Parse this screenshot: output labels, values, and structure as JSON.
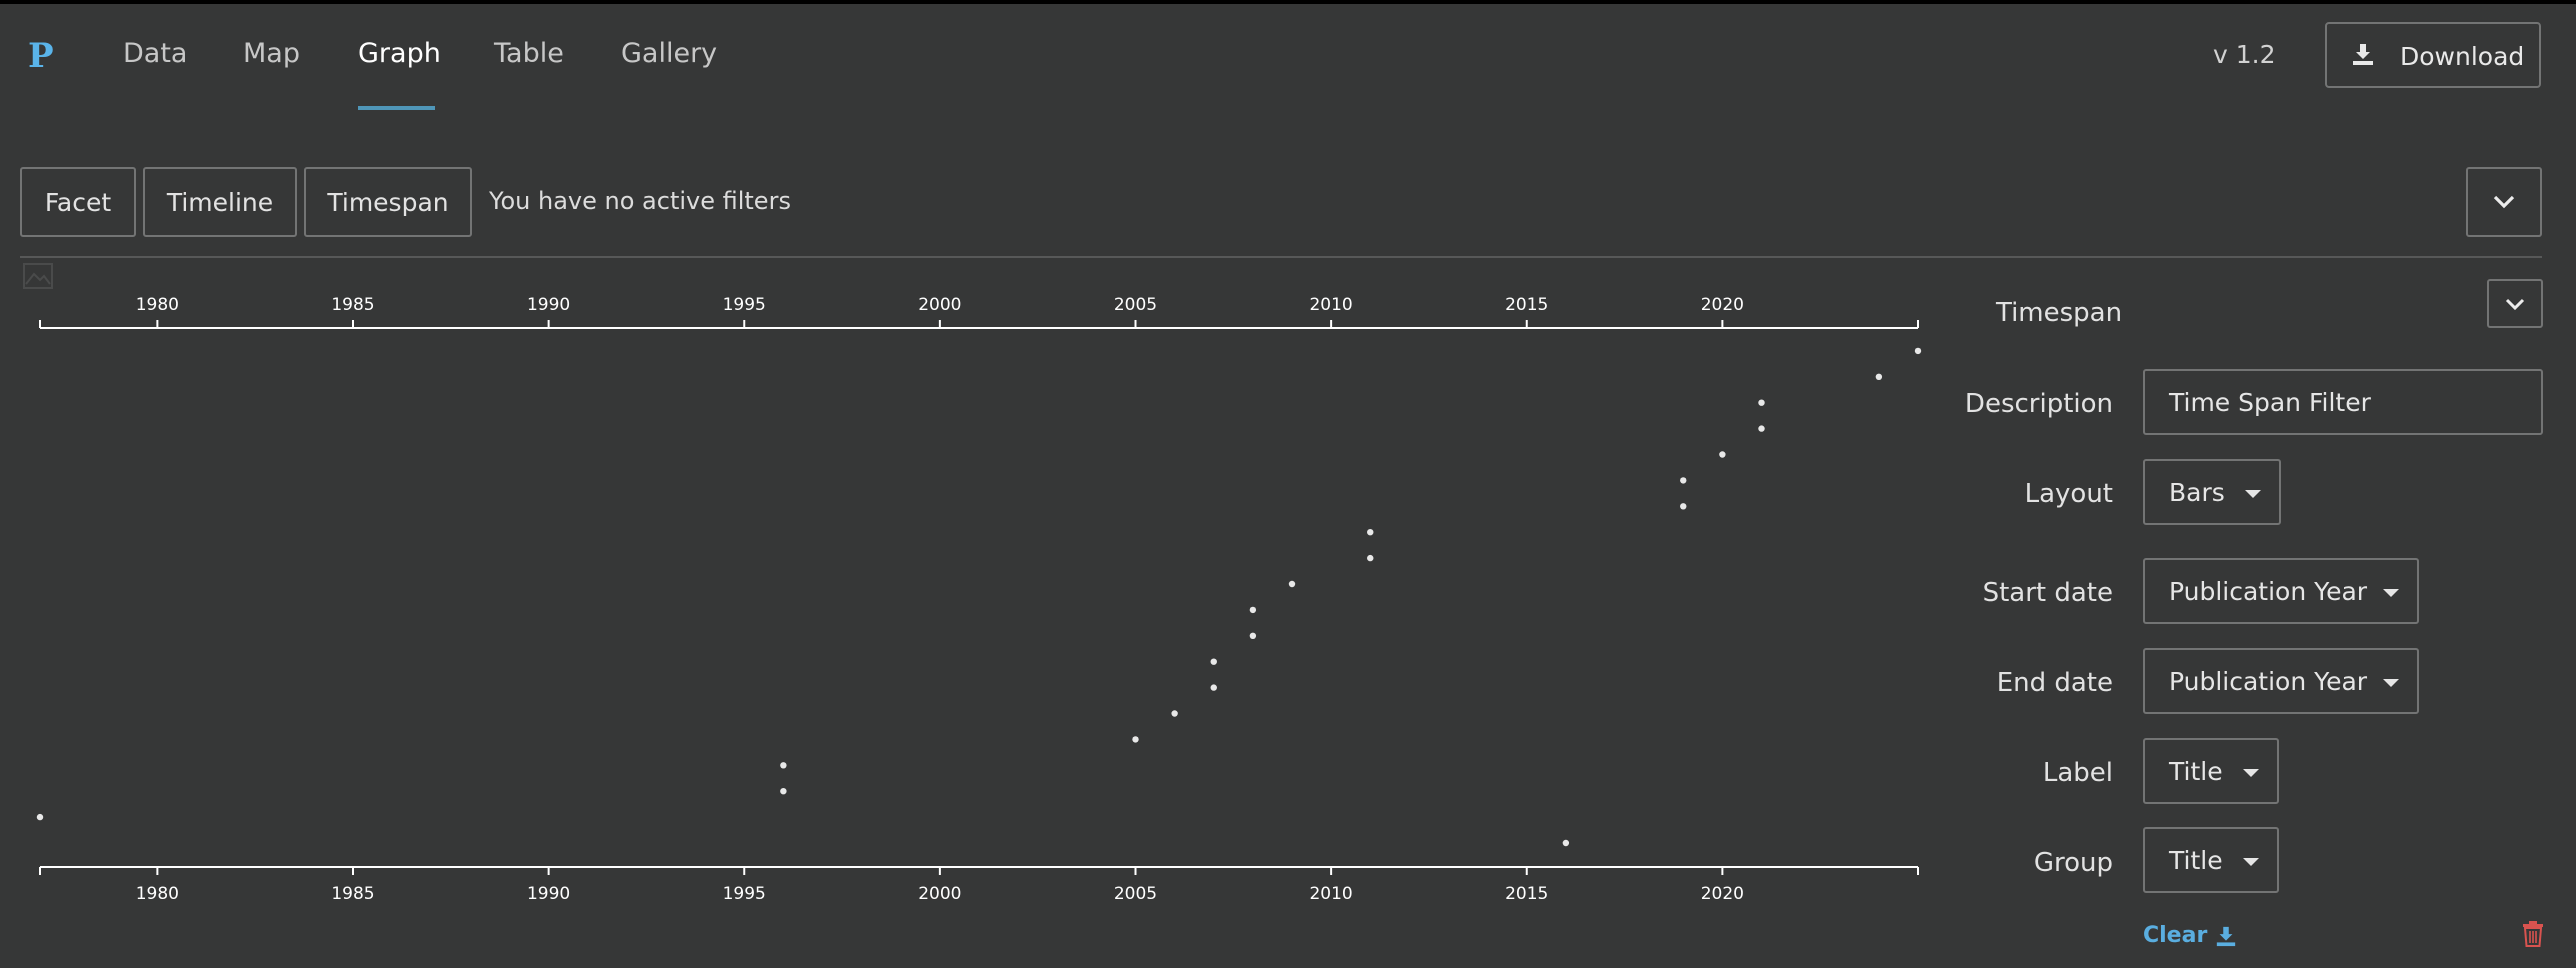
{
  "app": {
    "logo_letter": "P",
    "version": "v 1.2"
  },
  "tabs": [
    {
      "label": "Data",
      "active": false
    },
    {
      "label": "Map",
      "active": false
    },
    {
      "label": "Graph",
      "active": false
    },
    {
      "label": "Table",
      "active": false
    },
    {
      "label": "Gallery",
      "active": false
    }
  ],
  "active_tab": "Timespan",
  "toolbar": {
    "download_label": "Download"
  },
  "filters": {
    "buttons": [
      "Facet",
      "Timeline",
      "Timespan"
    ],
    "status": "You have no active filters"
  },
  "chart_data": {
    "type": "scatter",
    "xlim": [
      1977,
      2025
    ],
    "xticks": [
      1980,
      1985,
      1990,
      1995,
      2000,
      2005,
      2010,
      2015,
      2020
    ],
    "points": [
      {
        "x": 1977,
        "row": 1
      },
      {
        "x": 1996,
        "row": 3
      },
      {
        "x": 1996,
        "row": 2
      },
      {
        "x": 2005,
        "row": 4
      },
      {
        "x": 2006,
        "row": 5
      },
      {
        "x": 2007,
        "row": 6
      },
      {
        "x": 2007,
        "row": 7
      },
      {
        "x": 2008,
        "row": 8
      },
      {
        "x": 2008,
        "row": 9
      },
      {
        "x": 2009,
        "row": 10
      },
      {
        "x": 2011,
        "row": 11
      },
      {
        "x": 2011,
        "row": 12
      },
      {
        "x": 2016,
        "row": 0
      },
      {
        "x": 2019,
        "row": 13
      },
      {
        "x": 2019,
        "row": 14
      },
      {
        "x": 2020,
        "row": 15
      },
      {
        "x": 2021,
        "row": 16
      },
      {
        "x": 2021,
        "row": 17
      },
      {
        "x": 2024,
        "row": 18
      },
      {
        "x": 2025,
        "row": 19
      }
    ],
    "point_color": "#e8e8e8",
    "axis_color": "#ffffff"
  },
  "settings": {
    "title": "Timespan",
    "description_label": "Description",
    "description_value": "Time Span Filter",
    "layout_label": "Layout",
    "layout_value": "Bars",
    "start_label": "Start date",
    "start_value": "Publication Year",
    "end_label": "End date",
    "end_value": "Publication Year",
    "label_label": "Label",
    "label_value": "Title",
    "group_label": "Group",
    "group_value": "Title",
    "clear_label": "Clear"
  },
  "colors": {
    "background": "#363737",
    "accent": "#5ab4ea",
    "underline": "#4f96b8",
    "danger": "#d9534f"
  }
}
